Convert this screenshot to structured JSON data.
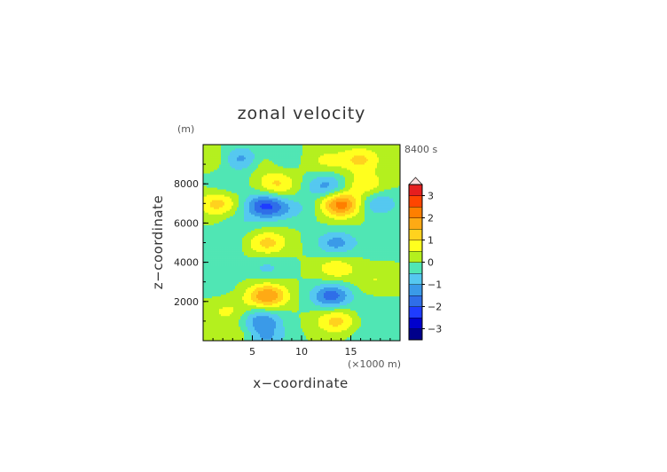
{
  "chart_data": {
    "type": "heatmap",
    "title": "zonal velocity",
    "xlabel": "x−coordinate",
    "ylabel": "z−coordinate",
    "x_unit": "(×1000 m)",
    "y_unit": "(m)",
    "time_label": "8400 s",
    "xlim": [
      0,
      20
    ],
    "ylim": [
      0,
      10000
    ],
    "x_ticks": [
      5,
      10,
      15
    ],
    "y_ticks": [
      2000,
      4000,
      6000,
      8000
    ],
    "colorbar": {
      "min": -3.5,
      "max": 3.5,
      "step": 0.5,
      "ticks": [
        3,
        2,
        1,
        0,
        -1,
        -2,
        -3
      ],
      "extend_max": true
    },
    "features": [
      {
        "x": 4,
        "z": 9300,
        "value": -1.4
      },
      {
        "x": 6,
        "z": 9200,
        "value": 0.8
      },
      {
        "x": 7.5,
        "z": 9300,
        "value": -0.6
      },
      {
        "x": 1.5,
        "z": 9300,
        "value": 0.4
      },
      {
        "x": 12.5,
        "z": 9200,
        "value": 0.6
      },
      {
        "x": 16,
        "z": 9250,
        "value": 1.1
      },
      {
        "x": 7.5,
        "z": 8000,
        "value": 1.1
      },
      {
        "x": 2.5,
        "z": 8000,
        "value": -0.4
      },
      {
        "x": 12.5,
        "z": 7900,
        "value": -1.2
      },
      {
        "x": 16.5,
        "z": 8000,
        "value": 0.9
      },
      {
        "x": 1.5,
        "z": 7000,
        "value": 1.2
      },
      {
        "x": 6.2,
        "z": 6900,
        "value": -1.9
      },
      {
        "x": 8,
        "z": 6700,
        "value": -0.6
      },
      {
        "x": 10.5,
        "z": 6800,
        "value": -0.3
      },
      {
        "x": 14,
        "z": 6950,
        "value": 2.3
      },
      {
        "x": 17.8,
        "z": 7000,
        "value": -1.0
      },
      {
        "x": 4,
        "z": 6000,
        "value": -0.4
      },
      {
        "x": 6.5,
        "z": 5000,
        "value": 1.2
      },
      {
        "x": 13.5,
        "z": 5000,
        "value": -1.2
      },
      {
        "x": 2,
        "z": 4900,
        "value": -0.5
      },
      {
        "x": 17.8,
        "z": 5000,
        "value": -0.4
      },
      {
        "x": 6.5,
        "z": 3700,
        "value": -0.6
      },
      {
        "x": 13.5,
        "z": 3700,
        "value": 0.9
      },
      {
        "x": 1,
        "z": 3000,
        "value": -0.4
      },
      {
        "x": 17.5,
        "z": 3100,
        "value": 0.5
      },
      {
        "x": 6.5,
        "z": 2300,
        "value": 2.0
      },
      {
        "x": 13,
        "z": 2300,
        "value": -1.8
      },
      {
        "x": 2.5,
        "z": 1500,
        "value": 0.6
      },
      {
        "x": 17.5,
        "z": 1500,
        "value": -0.5
      },
      {
        "x": 6,
        "z": 1000,
        "value": -1.4
      },
      {
        "x": 13.5,
        "z": 1000,
        "value": 1.2
      },
      {
        "x": 3,
        "z": 300,
        "value": 0.5
      },
      {
        "x": 6.5,
        "z": 100,
        "value": -0.9
      },
      {
        "x": 16.5,
        "z": 300,
        "value": -0.3
      }
    ]
  }
}
